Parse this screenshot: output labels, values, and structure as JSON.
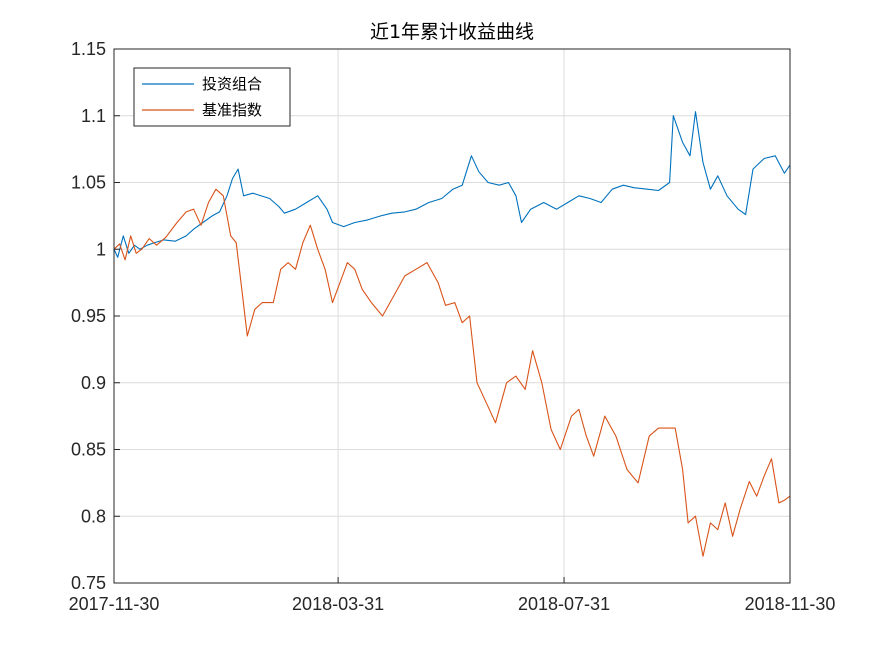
{
  "chart_data": {
    "type": "line",
    "title": "近1年累计收益曲线",
    "xlabel": "",
    "ylabel": "",
    "x_ticks": [
      "2017-11-30",
      "2018-03-31",
      "2018-07-31",
      "2018-11-30"
    ],
    "x_range": [
      "2017-11-30",
      "2018-11-30"
    ],
    "ylim": [
      0.75,
      1.15
    ],
    "y_ticks": [
      "0.75",
      "0.8",
      "0.85",
      "0.9",
      "0.95",
      "1",
      "1.05",
      "1.1",
      "1.15"
    ],
    "grid": true,
    "legend_position": "top-left",
    "series": [
      {
        "name": "投资组合",
        "color": "#0072BD",
        "points": [
          [
            "2017-11-30",
            1.0
          ],
          [
            "2017-12-02",
            0.994
          ],
          [
            "2017-12-05",
            1.01
          ],
          [
            "2017-12-08",
            0.997
          ],
          [
            "2017-12-11",
            1.003
          ],
          [
            "2017-12-14",
            1.0
          ],
          [
            "2017-12-18",
            1.003
          ],
          [
            "2017-12-22",
            1.005
          ],
          [
            "2017-12-27",
            1.007
          ],
          [
            "2018-01-02",
            1.006
          ],
          [
            "2018-01-08",
            1.01
          ],
          [
            "2018-01-12",
            1.015
          ],
          [
            "2018-01-17",
            1.02
          ],
          [
            "2018-01-22",
            1.025
          ],
          [
            "2018-01-26",
            1.028
          ],
          [
            "2018-01-30",
            1.04
          ],
          [
            "2018-02-02",
            1.053
          ],
          [
            "2018-02-05",
            1.06
          ],
          [
            "2018-02-08",
            1.04
          ],
          [
            "2018-02-13",
            1.042
          ],
          [
            "2018-02-22",
            1.038
          ],
          [
            "2018-02-27",
            1.032
          ],
          [
            "2018-03-02",
            1.027
          ],
          [
            "2018-03-08",
            1.03
          ],
          [
            "2018-03-14",
            1.035
          ],
          [
            "2018-03-20",
            1.04
          ],
          [
            "2018-03-25",
            1.03
          ],
          [
            "2018-03-28",
            1.02
          ],
          [
            "2018-04-03",
            1.017
          ],
          [
            "2018-04-09",
            1.02
          ],
          [
            "2018-04-16",
            1.022
          ],
          [
            "2018-04-23",
            1.025
          ],
          [
            "2018-04-29",
            1.027
          ],
          [
            "2018-05-06",
            1.028
          ],
          [
            "2018-05-12",
            1.03
          ],
          [
            "2018-05-19",
            1.035
          ],
          [
            "2018-05-26",
            1.038
          ],
          [
            "2018-06-01",
            1.045
          ],
          [
            "2018-06-06",
            1.048
          ],
          [
            "2018-06-11",
            1.07
          ],
          [
            "2018-06-15",
            1.058
          ],
          [
            "2018-06-20",
            1.05
          ],
          [
            "2018-06-26",
            1.048
          ],
          [
            "2018-07-01",
            1.05
          ],
          [
            "2018-07-05",
            1.04
          ],
          [
            "2018-07-08",
            1.02
          ],
          [
            "2018-07-13",
            1.03
          ],
          [
            "2018-07-20",
            1.035
          ],
          [
            "2018-07-27",
            1.03
          ],
          [
            "2018-08-02",
            1.035
          ],
          [
            "2018-08-08",
            1.04
          ],
          [
            "2018-08-14",
            1.038
          ],
          [
            "2018-08-20",
            1.035
          ],
          [
            "2018-08-26",
            1.045
          ],
          [
            "2018-09-01",
            1.048
          ],
          [
            "2018-09-07",
            1.046
          ],
          [
            "2018-09-14",
            1.045
          ],
          [
            "2018-09-20",
            1.044
          ],
          [
            "2018-09-26",
            1.05
          ],
          [
            "2018-09-28",
            1.1
          ],
          [
            "2018-10-03",
            1.08
          ],
          [
            "2018-10-07",
            1.07
          ],
          [
            "2018-10-10",
            1.103
          ],
          [
            "2018-10-14",
            1.065
          ],
          [
            "2018-10-18",
            1.045
          ],
          [
            "2018-10-22",
            1.055
          ],
          [
            "2018-10-27",
            1.04
          ],
          [
            "2018-11-02",
            1.03
          ],
          [
            "2018-11-06",
            1.026
          ],
          [
            "2018-11-10",
            1.06
          ],
          [
            "2018-11-16",
            1.068
          ],
          [
            "2018-11-22",
            1.07
          ],
          [
            "2018-11-27",
            1.057
          ],
          [
            "2018-11-30",
            1.063
          ]
        ]
      },
      {
        "name": "基准指数",
        "color": "#D95319",
        "points": [
          [
            "2017-11-30",
            1.0
          ],
          [
            "2017-12-03",
            1.004
          ],
          [
            "2017-12-06",
            0.992
          ],
          [
            "2017-12-09",
            1.01
          ],
          [
            "2017-12-12",
            0.997
          ],
          [
            "2017-12-15",
            1.0
          ],
          [
            "2017-12-19",
            1.008
          ],
          [
            "2017-12-23",
            1.003
          ],
          [
            "2017-12-28",
            1.009
          ],
          [
            "2018-01-03",
            1.02
          ],
          [
            "2018-01-08",
            1.028
          ],
          [
            "2018-01-12",
            1.03
          ],
          [
            "2018-01-16",
            1.018
          ],
          [
            "2018-01-20",
            1.035
          ],
          [
            "2018-01-24",
            1.045
          ],
          [
            "2018-01-28",
            1.04
          ],
          [
            "2018-02-01",
            1.01
          ],
          [
            "2018-02-04",
            1.005
          ],
          [
            "2018-02-07",
            0.97
          ],
          [
            "2018-02-10",
            0.935
          ],
          [
            "2018-02-14",
            0.955
          ],
          [
            "2018-02-18",
            0.96
          ],
          [
            "2018-02-24",
            0.96
          ],
          [
            "2018-02-28",
            0.985
          ],
          [
            "2018-03-04",
            0.99
          ],
          [
            "2018-03-08",
            0.985
          ],
          [
            "2018-03-12",
            1.005
          ],
          [
            "2018-03-16",
            1.018
          ],
          [
            "2018-03-20",
            1.0
          ],
          [
            "2018-03-24",
            0.985
          ],
          [
            "2018-03-28",
            0.96
          ],
          [
            "2018-04-01",
            0.975
          ],
          [
            "2018-04-05",
            0.99
          ],
          [
            "2018-04-09",
            0.985
          ],
          [
            "2018-04-13",
            0.97
          ],
          [
            "2018-04-18",
            0.96
          ],
          [
            "2018-04-24",
            0.95
          ],
          [
            "2018-04-30",
            0.965
          ],
          [
            "2018-05-06",
            0.98
          ],
          [
            "2018-05-12",
            0.985
          ],
          [
            "2018-05-18",
            0.99
          ],
          [
            "2018-05-24",
            0.975
          ],
          [
            "2018-05-28",
            0.958
          ],
          [
            "2018-06-02",
            0.96
          ],
          [
            "2018-06-06",
            0.945
          ],
          [
            "2018-06-10",
            0.95
          ],
          [
            "2018-06-14",
            0.9
          ],
          [
            "2018-06-19",
            0.885
          ],
          [
            "2018-06-24",
            0.87
          ],
          [
            "2018-06-30",
            0.9
          ],
          [
            "2018-07-05",
            0.905
          ],
          [
            "2018-07-10",
            0.895
          ],
          [
            "2018-07-14",
            0.924
          ],
          [
            "2018-07-19",
            0.9
          ],
          [
            "2018-07-24",
            0.865
          ],
          [
            "2018-07-29",
            0.85
          ],
          [
            "2018-08-04",
            0.875
          ],
          [
            "2018-08-08",
            0.88
          ],
          [
            "2018-08-12",
            0.86
          ],
          [
            "2018-08-16",
            0.845
          ],
          [
            "2018-08-22",
            0.875
          ],
          [
            "2018-08-28",
            0.86
          ],
          [
            "2018-09-03",
            0.835
          ],
          [
            "2018-09-09",
            0.825
          ],
          [
            "2018-09-15",
            0.86
          ],
          [
            "2018-09-20",
            0.866
          ],
          [
            "2018-09-25",
            0.866
          ],
          [
            "2018-09-29",
            0.866
          ],
          [
            "2018-10-03",
            0.835
          ],
          [
            "2018-10-06",
            0.795
          ],
          [
            "2018-10-10",
            0.8
          ],
          [
            "2018-10-14",
            0.77
          ],
          [
            "2018-10-18",
            0.795
          ],
          [
            "2018-10-22",
            0.79
          ],
          [
            "2018-10-26",
            0.81
          ],
          [
            "2018-10-30",
            0.785
          ],
          [
            "2018-11-03",
            0.805
          ],
          [
            "2018-11-08",
            0.826
          ],
          [
            "2018-11-12",
            0.815
          ],
          [
            "2018-11-16",
            0.83
          ],
          [
            "2018-11-20",
            0.843
          ],
          [
            "2018-11-24",
            0.81
          ],
          [
            "2018-11-27",
            0.812
          ],
          [
            "2018-11-30",
            0.815
          ]
        ]
      }
    ]
  }
}
